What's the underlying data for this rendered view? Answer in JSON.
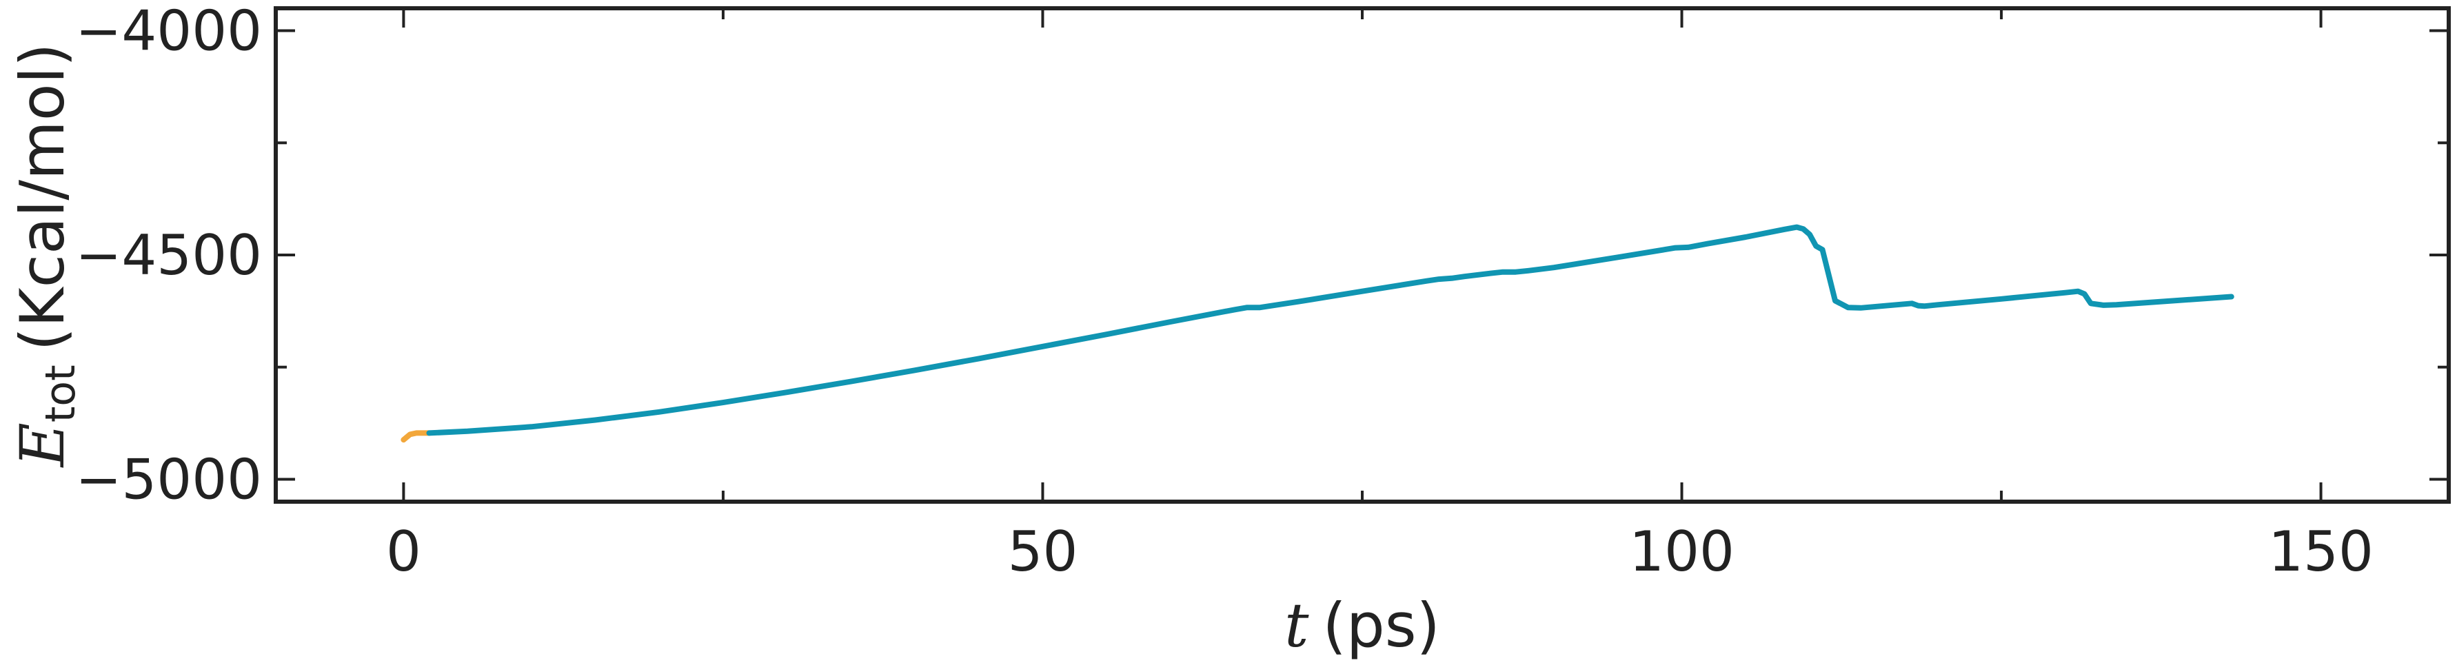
{
  "chart_data": {
    "type": "line",
    "xlabel": {
      "var": "t",
      "unit": "(ps)"
    },
    "ylabel": {
      "var": "E",
      "sub": "tot",
      "unit": "(Kcal/mol)"
    },
    "xlim": [
      -10,
      160
    ],
    "ylim": [
      -5050,
      -3950
    ],
    "x_ticks": [
      0,
      50,
      100,
      150
    ],
    "x_tick_labels": [
      "0",
      "50",
      "100",
      "150"
    ],
    "x_minor_ticks": [
      25,
      75,
      125
    ],
    "y_ticks": [
      -5000,
      -4500,
      -4000
    ],
    "y_tick_labels": [
      "−5000",
      "−4500",
      "−4000"
    ],
    "y_minor_ticks": [
      -4750,
      -4250
    ],
    "grid": false,
    "colors": {
      "series_a": "#f2a73b",
      "series_b": "#1095b2",
      "axes": "#222222"
    },
    "series": [
      {
        "color_key": "series_a",
        "x": [
          0,
          0.5,
          1,
          1.5,
          2
        ],
        "y": [
          -4912,
          -4900,
          -4897,
          -4897,
          -4897
        ]
      },
      {
        "color_key": "series_b",
        "x": [
          2,
          5,
          10,
          15,
          20,
          25,
          30,
          35,
          40,
          45,
          50,
          55,
          60,
          65,
          66,
          67,
          70,
          75,
          80,
          81,
          82,
          83,
          85,
          86,
          87,
          88,
          90,
          95,
          99.5,
          100.5,
          102,
          105,
          108,
          109,
          109.5,
          110,
          110.5,
          111,
          112,
          113,
          114,
          118,
          118.5,
          119,
          120,
          125,
          130,
          131,
          131.5,
          132,
          133,
          134,
          143
        ],
        "y": [
          -4897,
          -4893,
          -4883,
          -4868,
          -4850,
          -4829,
          -4806,
          -4782,
          -4757,
          -4731,
          -4704,
          -4677,
          -4649,
          -4622,
          -4617,
          -4617,
          -4604,
          -4581,
          -4558,
          -4554,
          -4552,
          -4548,
          -4541,
          -4538,
          -4538,
          -4535,
          -4528,
          -4505,
          -4484,
          -4483,
          -4475,
          -4460,
          -4443,
          -4438,
          -4442,
          -4454,
          -4480,
          -4488,
          -4602,
          -4617,
          -4618,
          -4608,
          -4613,
          -4614,
          -4611,
          -4598,
          -4584,
          -4581,
          -4587,
          -4608,
          -4612,
          -4611,
          -4593
        ]
      }
    ]
  }
}
